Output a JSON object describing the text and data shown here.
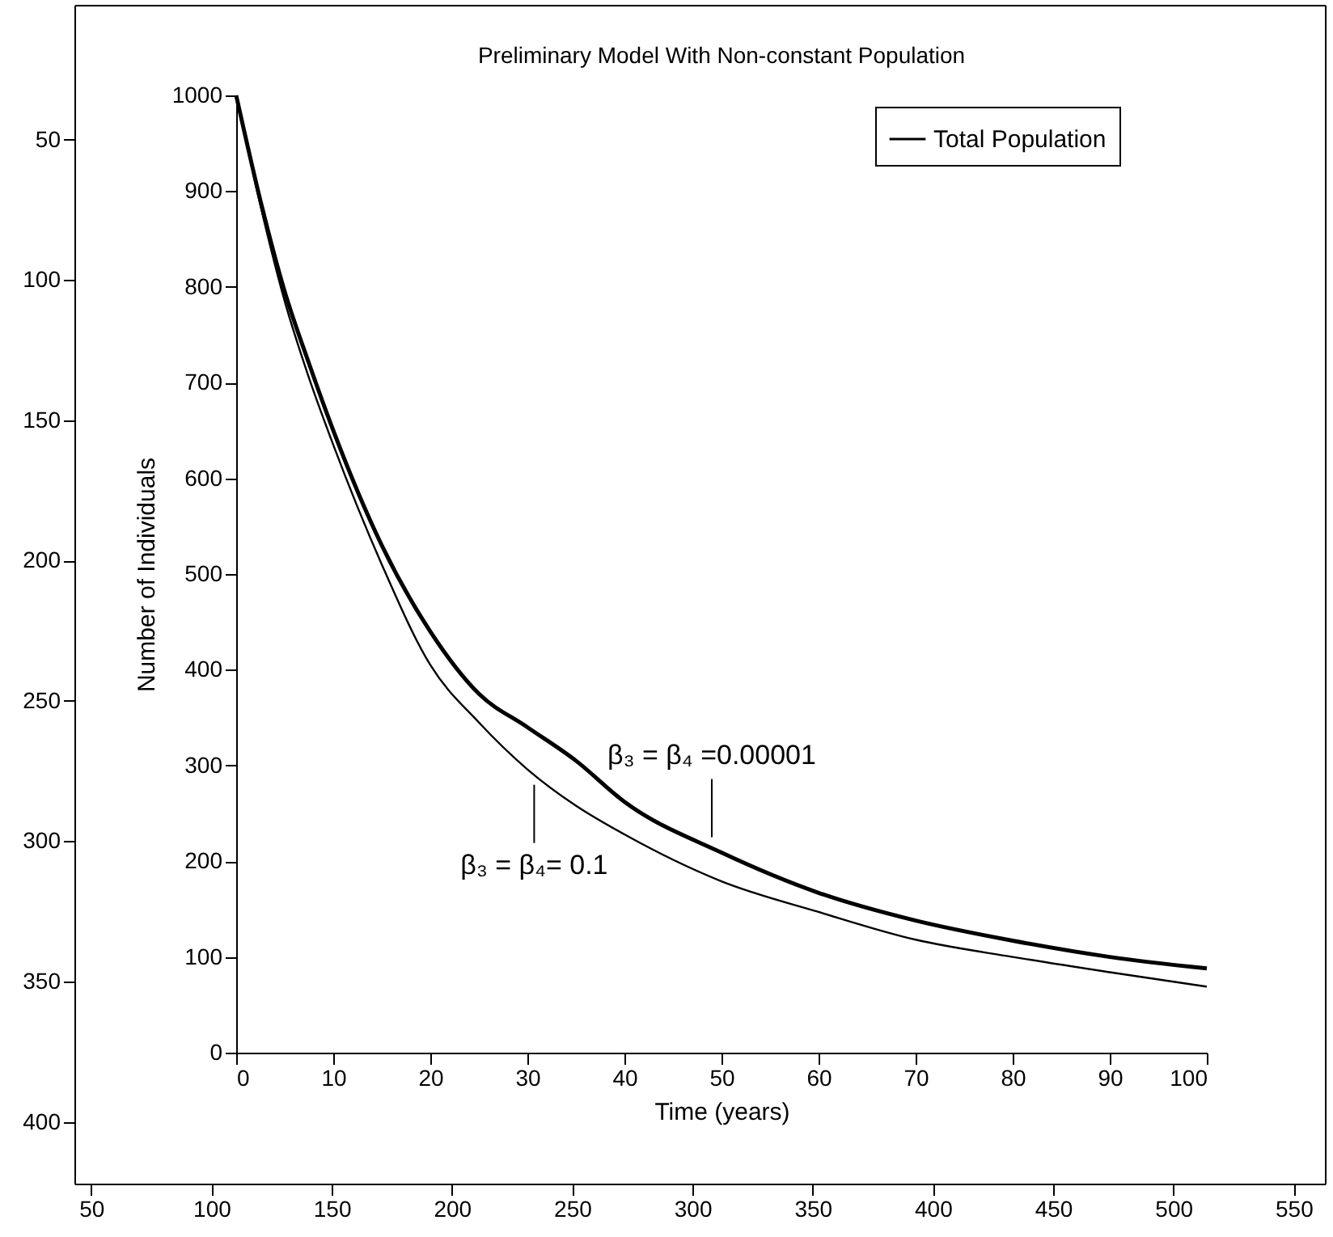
{
  "chart_data": [
    {
      "type": "scatter",
      "xlim": [
        43,
        563
      ],
      "ylim": [
        422,
        2
      ],
      "xticks": [
        50,
        100,
        150,
        200,
        250,
        300,
        350,
        400,
        450,
        500,
        550
      ],
      "yticks": [
        50,
        100,
        150,
        200,
        250,
        300,
        350,
        400
      ]
    },
    {
      "type": "line",
      "title": "Preliminary Model With Non-constant Population",
      "xlabel": "Time (years)",
      "ylabel": "Number of Individuals",
      "x": [
        0,
        2.5,
        5,
        7.5,
        10,
        15,
        20,
        25,
        30,
        35,
        40,
        50,
        60,
        70,
        80,
        90,
        100
      ],
      "series": [
        {
          "name": "Total Population",
          "color": "#000000",
          "values": [
            1000,
            890,
            795,
            720,
            650,
            530,
            440,
            375,
            340,
            305,
            262,
            209,
            167,
            138,
            117,
            100,
            88
          ]
        },
        {
          "color": "#000000",
          "values": [
            1000,
            885,
            785,
            705,
            635,
            510,
            405,
            345,
            296,
            258,
            228,
            179,
            147,
            118,
            100,
            84,
            69
          ]
        }
      ],
      "annotations": [
        {
          "text": "β₃ = β₄ =0.00001",
          "x": 49,
          "y": 215
        },
        {
          "text": "β₃ = β₄= 0.1",
          "x": 30.7,
          "y": 290
        }
      ],
      "xlim": [
        0,
        100
      ],
      "ylim": [
        0,
        1000
      ],
      "xticks": [
        0,
        10,
        20,
        30,
        40,
        50,
        60,
        70,
        80,
        90,
        100
      ],
      "yticks": [
        0,
        100,
        200,
        300,
        400,
        500,
        600,
        700,
        800,
        900,
        1000
      ],
      "legend": "top right",
      "marker": "none",
      "line_style": "solid"
    }
  ]
}
